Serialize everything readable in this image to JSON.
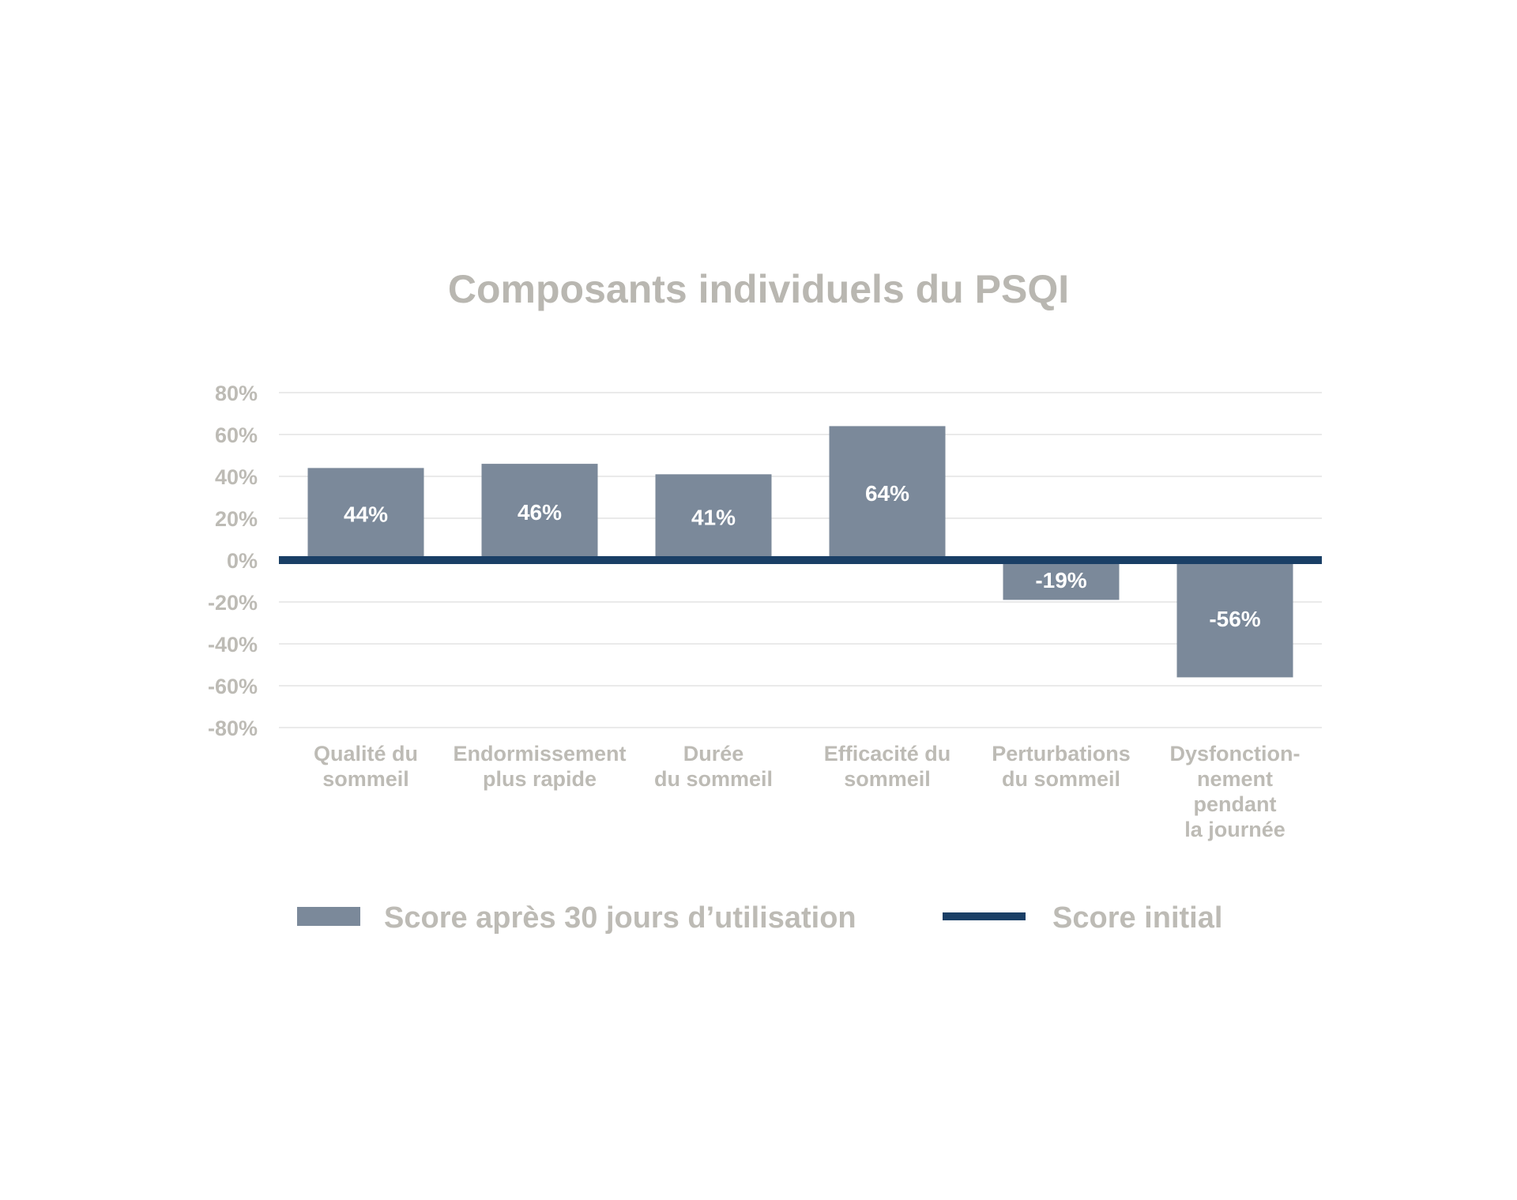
{
  "chart_data": {
    "type": "bar",
    "title": "Composants individuels du PSQI",
    "xlabel": "",
    "ylabel": "",
    "ylim": [
      -80,
      80
    ],
    "y_ticks": [
      80,
      60,
      40,
      20,
      0,
      -20,
      -40,
      -60,
      -80
    ],
    "y_tick_labels": [
      "80%",
      "60%",
      "40%",
      "20%",
      "0%",
      "-20%",
      "-40%",
      "-60%",
      "-80%"
    ],
    "grid": true,
    "categories": [
      [
        "Qualité du",
        "sommeil"
      ],
      [
        "Endormissement",
        "plus rapide"
      ],
      [
        "Durée",
        "du sommeil"
      ],
      [
        "Efficacité du",
        "sommeil"
      ],
      [
        "Perturbations",
        "du sommeil"
      ],
      [
        "Dysfonction-",
        "nement",
        "pendant",
        "la journée"
      ]
    ],
    "values": [
      44,
      46,
      41,
      64,
      -19,
      -56
    ],
    "value_labels": [
      "44%",
      "46%",
      "41%",
      "64%",
      "-19%",
      "-56%"
    ],
    "series": [
      {
        "name": "Score après 30 jours d’utilisation",
        "values": [
          44,
          46,
          41,
          64,
          -19,
          -56
        ]
      }
    ],
    "reference_line": {
      "name": "Score initial",
      "value": 0
    },
    "legend_position": "bottom",
    "legend": [
      {
        "label": "Score après 30 jours d’utilisation",
        "kind": "bar"
      },
      {
        "label": "Score initial",
        "kind": "line"
      }
    ],
    "colors": {
      "bar": "#7b899a",
      "baseline": "#1a3f66",
      "grid": "#e3e3e3",
      "text": "#bdbbb5",
      "title": "#b9b7b1",
      "bar_label": "#ffffff"
    }
  }
}
